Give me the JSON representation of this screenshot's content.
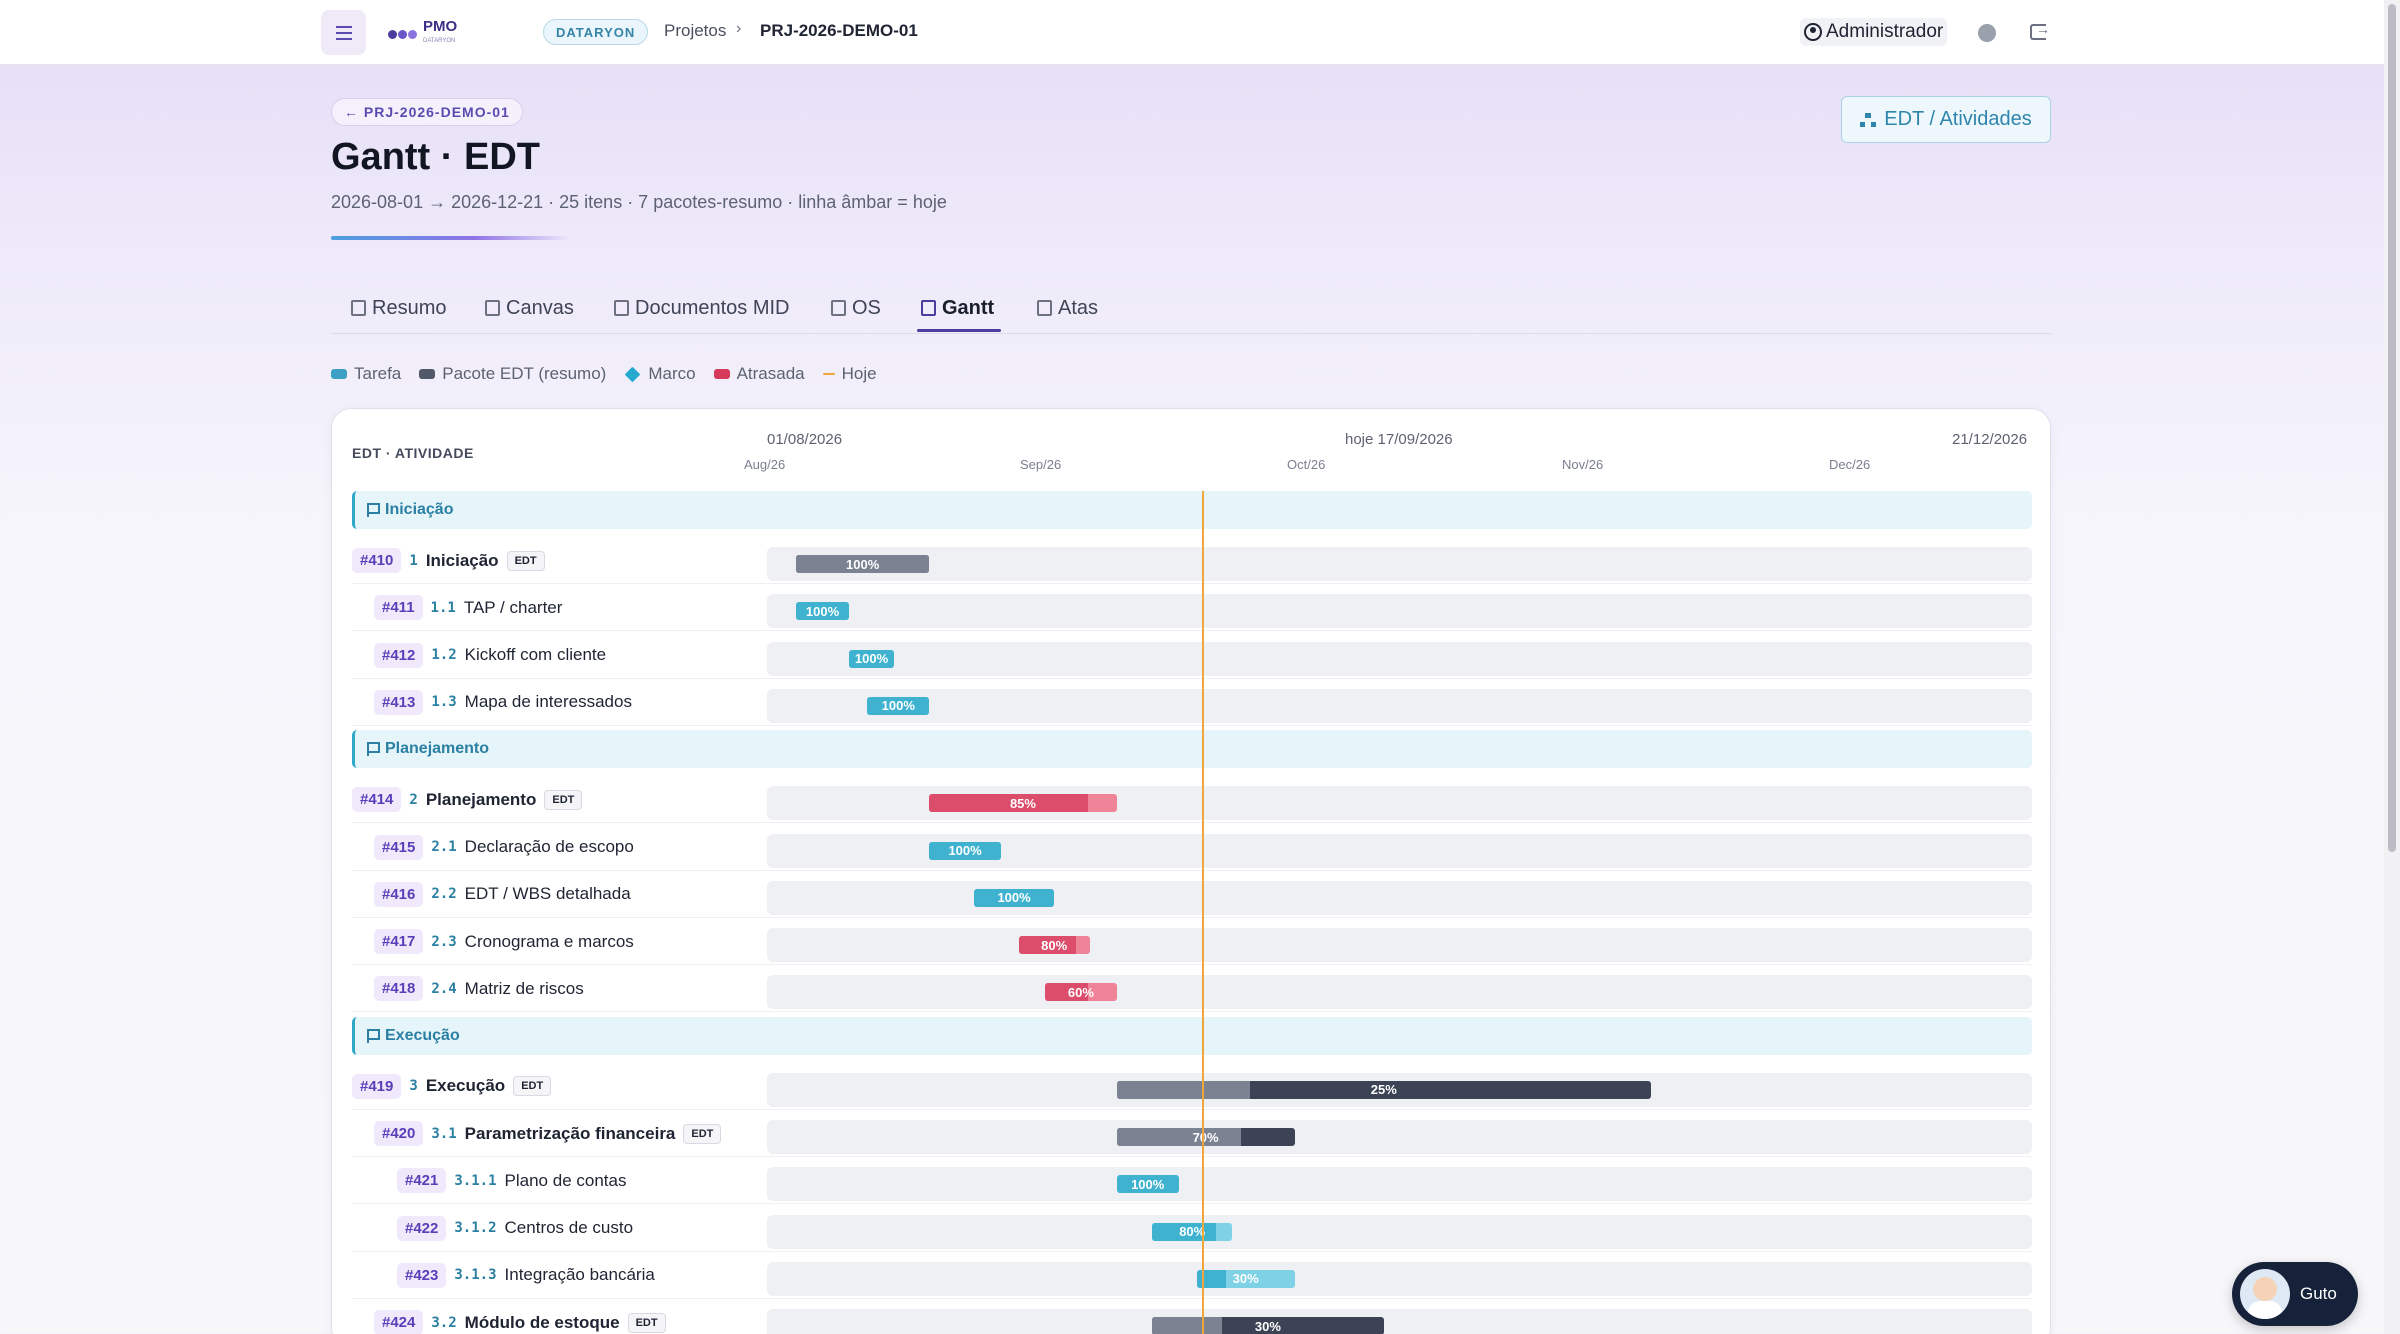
{
  "topbar": {
    "logo_text": "PMO",
    "logo_subtext": "DATARYON",
    "tenant": "DATARYON",
    "breadcrumb": [
      "Projetos",
      "PRJ-2026-DEMO-01"
    ],
    "user": "Administrador"
  },
  "header": {
    "back_label": "← PRJ-2026-DEMO-01",
    "title": "Gantt · EDT",
    "subtitle": "2026-08-01 → 2026-12-21 · 25 itens · 7 pacotes-resumo · linha âmbar = hoje",
    "edt_button": "EDT / Atividades"
  },
  "tabs": [
    {
      "label": "Resumo",
      "icon": "home-icon"
    },
    {
      "label": "Canvas",
      "icon": "grid-icon"
    },
    {
      "label": "Documentos MID",
      "icon": "document-icon"
    },
    {
      "label": "OS",
      "icon": "clipboard-icon"
    },
    {
      "label": "Gantt",
      "icon": "gantt-icon",
      "active": true
    },
    {
      "label": "Atas",
      "icon": "notes-icon"
    }
  ],
  "legend": {
    "task": "Tarefa",
    "package": "Pacote EDT (resumo)",
    "milestone": "Marco",
    "late": "Atrasada",
    "today": "Hoje"
  },
  "colors": {
    "task": "#3fb2cf",
    "package": "#505869",
    "late": "#d63a5a",
    "today": "#f0a63a",
    "brand": "#4b3c9e"
  },
  "gantt": {
    "column_header": "EDT · ATIVIDADE",
    "start_label": "01/08/2026",
    "today_label": "hoje 17/09/2026",
    "end_label": "21/12/2026",
    "months": [
      "Aug/26",
      "Sep/26",
      "Oct/26",
      "Nov/26",
      "Dec/26"
    ],
    "phases": [
      {
        "name": "Iniciação",
        "rows": [
          {
            "id": "#410",
            "wbs": "1",
            "name": "Iniciação",
            "edt": "EDT",
            "level": 0,
            "type": "pack",
            "pct": "100%",
            "progress": 1.0,
            "start": "2026-08-03",
            "end": "2026-08-18"
          },
          {
            "id": "#411",
            "wbs": "1.1",
            "name": "TAP / charter",
            "level": 1,
            "type": "task",
            "pct": "100%",
            "progress": 1.0,
            "start": "2026-08-03",
            "end": "2026-08-09"
          },
          {
            "id": "#412",
            "wbs": "1.2",
            "name": "Kickoff com cliente",
            "level": 1,
            "type": "task",
            "pct": "100%",
            "progress": 1.0,
            "start": "2026-08-09",
            "end": "2026-08-14"
          },
          {
            "id": "#413",
            "wbs": "1.3",
            "name": "Mapa de interessados",
            "level": 1,
            "type": "task",
            "pct": "100%",
            "progress": 1.0,
            "start": "2026-08-11",
            "end": "2026-08-18"
          }
        ]
      },
      {
        "name": "Planejamento",
        "rows": [
          {
            "id": "#414",
            "wbs": "2",
            "name": "Planejamento",
            "edt": "EDT",
            "level": 0,
            "type": "late",
            "pct": "85%",
            "progress": 0.85,
            "start": "2026-08-18",
            "end": "2026-09-08"
          },
          {
            "id": "#415",
            "wbs": "2.1",
            "name": "Declaração de escopo",
            "level": 1,
            "type": "task",
            "pct": "100%",
            "progress": 1.0,
            "start": "2026-08-18",
            "end": "2026-08-26"
          },
          {
            "id": "#416",
            "wbs": "2.2",
            "name": "EDT / WBS detalhada",
            "level": 1,
            "type": "task",
            "pct": "100%",
            "progress": 1.0,
            "start": "2026-08-23",
            "end": "2026-09-01"
          },
          {
            "id": "#417",
            "wbs": "2.3",
            "name": "Cronograma e marcos",
            "level": 1,
            "type": "late",
            "pct": "80%",
            "progress": 0.8,
            "start": "2026-08-28",
            "end": "2026-09-05"
          },
          {
            "id": "#418",
            "wbs": "2.4",
            "name": "Matriz de riscos",
            "level": 1,
            "type": "late",
            "pct": "60%",
            "progress": 0.6,
            "start": "2026-08-31",
            "end": "2026-09-08"
          }
        ]
      },
      {
        "name": "Execução",
        "rows": [
          {
            "id": "#419",
            "wbs": "3",
            "name": "Execução",
            "edt": "EDT",
            "level": 0,
            "type": "pack",
            "pct": "25%",
            "progress": 0.25,
            "start": "2026-09-08",
            "end": "2026-11-07"
          },
          {
            "id": "#420",
            "wbs": "3.1",
            "name": "Parametrização financeira",
            "edt": "EDT",
            "level": 1,
            "type": "pack",
            "pct": "70%",
            "progress": 0.7,
            "start": "2026-09-08",
            "end": "2026-09-28"
          },
          {
            "id": "#421",
            "wbs": "3.1.1",
            "name": "Plano de contas",
            "level": 2,
            "type": "task",
            "pct": "100%",
            "progress": 1.0,
            "start": "2026-09-08",
            "end": "2026-09-15"
          },
          {
            "id": "#422",
            "wbs": "3.1.2",
            "name": "Centros de custo",
            "level": 2,
            "type": "task",
            "pct": "80%",
            "progress": 0.8,
            "start": "2026-09-12",
            "end": "2026-09-21"
          },
          {
            "id": "#423",
            "wbs": "3.1.3",
            "name": "Integração bancária",
            "level": 2,
            "type": "task",
            "pct": "30%",
            "progress": 0.3,
            "start": "2026-09-17",
            "end": "2026-09-28"
          },
          {
            "id": "#424",
            "wbs": "3.2",
            "name": "Módulo de estoque",
            "edt": "EDT",
            "level": 1,
            "type": "pack",
            "pct": "30%",
            "progress": 0.3,
            "start": "2026-09-12",
            "end": "2026-10-08"
          }
        ]
      }
    ]
  },
  "assistant": {
    "name": "Guto"
  }
}
